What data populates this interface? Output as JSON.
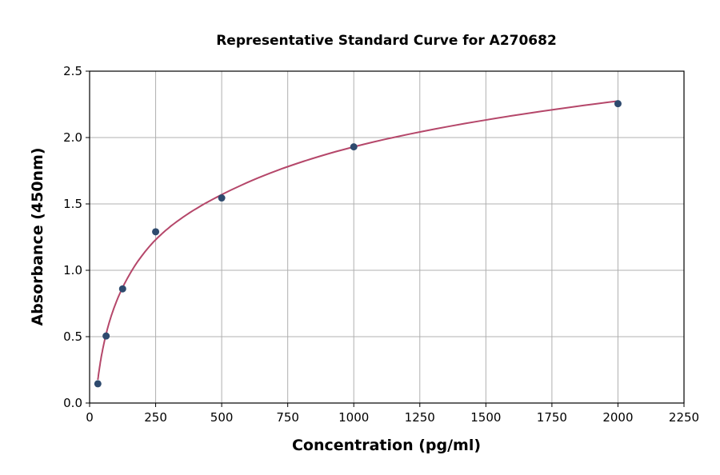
{
  "chart_data": {
    "type": "scatter",
    "title": "Representative Standard Curve for A270682",
    "xlabel": "Concentration (pg/ml)",
    "ylabel": "Absorbance (450nm)",
    "xlim": [
      0,
      2250
    ],
    "ylim": [
      0,
      2.5
    ],
    "xticks": [
      "0",
      "250",
      "500",
      "750",
      "1000",
      "1250",
      "1500",
      "1750",
      "2000",
      "2250"
    ],
    "yticks": [
      "0.0",
      "0.5",
      "1.0",
      "1.5",
      "2.0",
      "2.5"
    ],
    "grid": true,
    "points": {
      "x": [
        31.25,
        62.5,
        125,
        250,
        500,
        1000,
        2000
      ],
      "y": [
        0.145,
        0.505,
        0.86,
        1.29,
        1.545,
        1.93,
        2.255
      ],
      "color": "#2e4a6e"
    },
    "fit_curve": {
      "x": [
        31.25,
        62.5,
        125,
        250,
        500,
        1000,
        2000
      ],
      "y": [
        0.175,
        0.52,
        0.87,
        1.23,
        1.57,
        1.93,
        2.275
      ],
      "color": "#b5476a"
    }
  }
}
